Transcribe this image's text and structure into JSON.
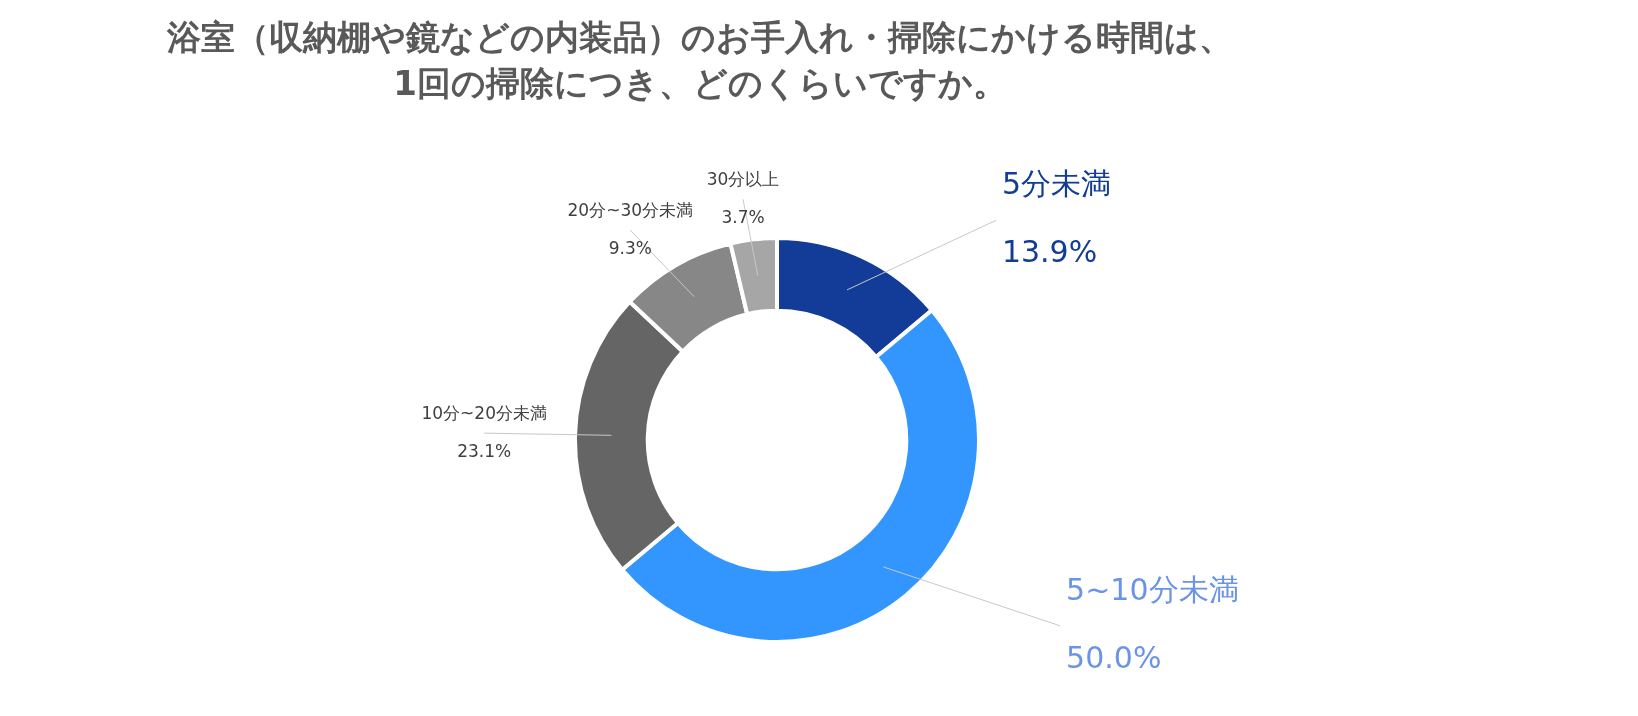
{
  "chart_data": {
    "type": "donut",
    "title": "浴室（収納棚や鏡などの内装品）のお手入れ・掃除にかける時間は、\n1回の掃除につき、どのくらいですか。",
    "categories": [
      "5分未満",
      "5~10分未満",
      "10分~20分未満",
      "20分~30分未満",
      "30分以上"
    ],
    "values": [
      13.9,
      50.0,
      23.1,
      9.3,
      3.7
    ],
    "value_labels": [
      "13.9%",
      "50.0%",
      "23.1%",
      "9.3%",
      "3.7%"
    ],
    "colors": [
      "#123c97",
      "#3396fe",
      "#656565",
      "#878787",
      "#a6a6a6"
    ],
    "legend": false
  }
}
